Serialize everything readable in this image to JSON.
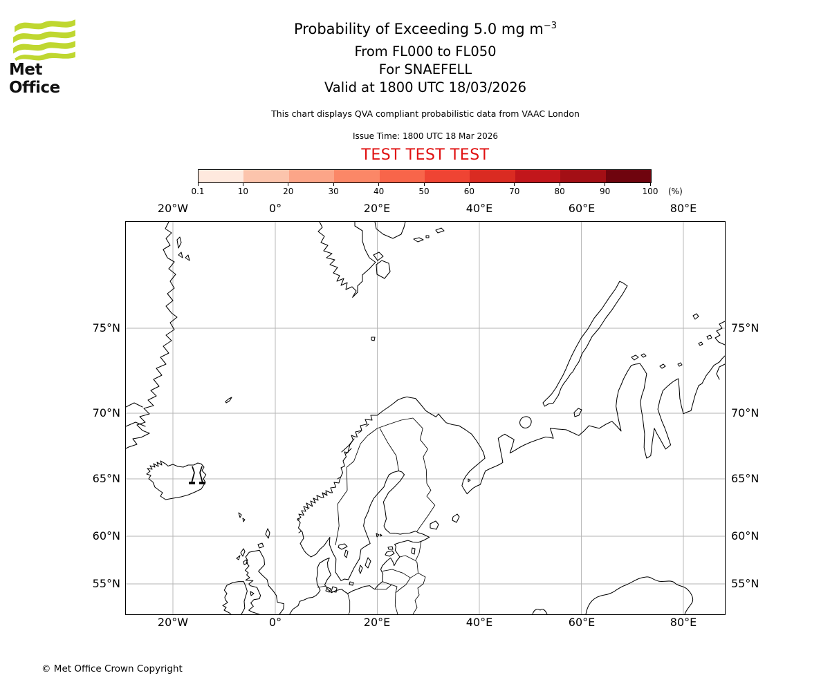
{
  "logo": {
    "brand": "Met Office",
    "green": "#bfd730"
  },
  "header": {
    "title_main": "Probability of Exceeding 5.0 mg m",
    "title_sup": "−3",
    "line2": "From FL000 to FL050",
    "line3": "For SNAEFELL",
    "line4": "Valid at 1800 UTC 18/03/2026",
    "disclaimer": "This chart displays QVA compliant probabilistic data from VAAC London",
    "issue_time": "Issue Time: 1800 UTC 18 Mar 2026",
    "test_banner": "TEST TEST TEST",
    "test_color": "#e01111"
  },
  "colorbar": {
    "unit": "(%)",
    "tick_labels": [
      "0.1",
      "10",
      "20",
      "30",
      "40",
      "50",
      "60",
      "70",
      "80",
      "90",
      "100"
    ],
    "scale_boundaries_percent": [
      0.1,
      10,
      20,
      30,
      40,
      50,
      60,
      70,
      80,
      90,
      100
    ],
    "segment_colors": [
      "#fee9de",
      "#fcc4ac",
      "#fca588",
      "#fb8767",
      "#f8654a",
      "#ef4433",
      "#da2b22",
      "#c2161b",
      "#a30f15",
      "#6f040e"
    ]
  },
  "map": {
    "lon_labels": [
      "20°W",
      "0°",
      "20°E",
      "40°E",
      "60°E",
      "80°E"
    ],
    "lat_labels": [
      "75°N",
      "70°N",
      "65°N",
      "60°N",
      "55°N"
    ],
    "gridline_color": "#b3b3b3",
    "coastline_color": "#000000"
  },
  "footer": {
    "copyright": "© Met Office Crown Copyright"
  }
}
